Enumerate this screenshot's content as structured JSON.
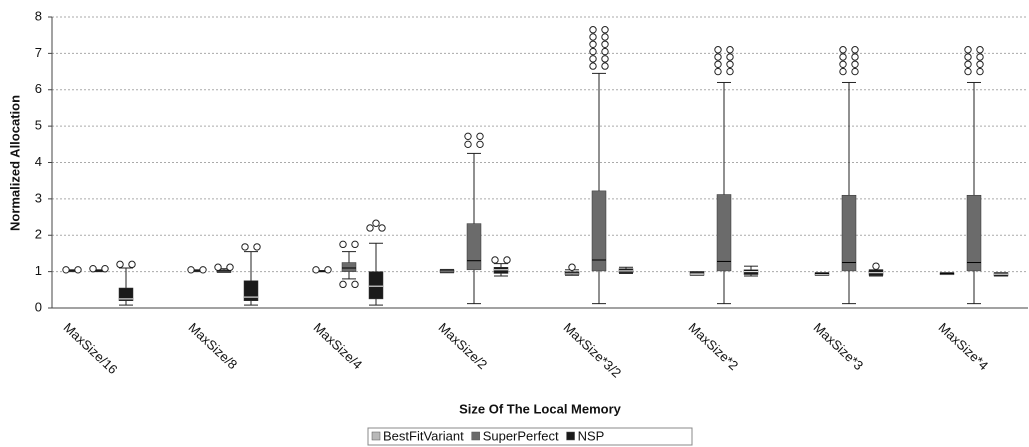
{
  "chart_data": {
    "type": "boxplot",
    "x_label": "Size Of The Local Memory",
    "y_label": "Normalized Allocation",
    "categories": [
      "MaxSize/16",
      "MaxSize/8",
      "MaxSize/4",
      "MaxSize/2",
      "MaxSize*3/2",
      "MaxSize*2",
      "MaxSize*3",
      "MaxSize*4"
    ],
    "ylim": [
      0,
      8
    ],
    "yticks": [
      0,
      1,
      2,
      3,
      4,
      5,
      6,
      7,
      8
    ],
    "grid": true,
    "legend": "bottom",
    "series": [
      {
        "name": "BestFitVariant",
        "color": "#b8b8b8",
        "boxes": [
          {
            "min": 1.0,
            "q1": 1.0,
            "median": 1.02,
            "q3": 1.04,
            "max": 1.05,
            "outliers": [
              1.05,
              1.05
            ]
          },
          {
            "min": 1.0,
            "q1": 1.0,
            "median": 1.02,
            "q3": 1.04,
            "max": 1.05,
            "outliers": [
              1.05,
              1.05
            ]
          },
          {
            "min": 1.0,
            "q1": 1.0,
            "median": 1.01,
            "q3": 1.02,
            "max": 1.03,
            "outliers": [
              1.05,
              1.05
            ]
          },
          {
            "min": 0.97,
            "q1": 0.98,
            "median": 1.02,
            "q3": 1.05,
            "max": 1.06,
            "outliers": []
          },
          {
            "min": 0.9,
            "q1": 0.92,
            "median": 0.97,
            "q3": 1.0,
            "max": 1.05,
            "outliers": [
              1.12
            ]
          },
          {
            "min": 0.9,
            "q1": 0.9,
            "median": 0.97,
            "q3": 1.0,
            "max": 1.0,
            "outliers": []
          },
          {
            "min": 0.9,
            "q1": 0.9,
            "median": 0.95,
            "q3": 0.97,
            "max": 0.97,
            "outliers": []
          },
          {
            "min": 0.92,
            "q1": 0.92,
            "median": 0.95,
            "q3": 0.97,
            "max": 0.97,
            "outliers": []
          }
        ]
      },
      {
        "name": "SuperPerfect",
        "color": "#6b6b6b",
        "boxes": [
          {
            "min": 1.0,
            "q1": 1.0,
            "median": 1.02,
            "q3": 1.04,
            "max": 1.05,
            "outliers": [
              1.08,
              1.08
            ]
          },
          {
            "min": 0.98,
            "q1": 0.98,
            "median": 1.02,
            "q3": 1.05,
            "max": 1.08,
            "outliers": [
              1.12,
              1.12
            ]
          },
          {
            "min": 0.8,
            "q1": 1.0,
            "median": 1.1,
            "q3": 1.25,
            "max": 1.55,
            "outliers": [
              1.75,
              1.75,
              0.65,
              0.65
            ]
          },
          {
            "min": 0.12,
            "q1": 1.05,
            "median": 1.3,
            "q3": 2.32,
            "max": 4.25,
            "outliers": [
              4.5,
              4.5,
              4.72,
              4.72
            ]
          },
          {
            "min": 0.12,
            "q1": 1.02,
            "median": 1.32,
            "q3": 3.22,
            "max": 6.45,
            "outliers": [
              6.65,
              6.65,
              6.85,
              6.85,
              7.05,
              7.05,
              7.25,
              7.25,
              7.45,
              7.45,
              7.65,
              7.65
            ]
          },
          {
            "min": 0.12,
            "q1": 1.02,
            "median": 1.28,
            "q3": 3.12,
            "max": 6.2,
            "outliers": [
              6.5,
              6.5,
              6.7,
              6.7,
              6.9,
              6.9,
              7.1,
              7.1
            ]
          },
          {
            "min": 0.12,
            "q1": 1.02,
            "median": 1.25,
            "q3": 3.1,
            "max": 6.2,
            "outliers": [
              6.5,
              6.5,
              6.7,
              6.7,
              6.9,
              6.9,
              7.1,
              7.1
            ]
          },
          {
            "min": 0.12,
            "q1": 1.02,
            "median": 1.25,
            "q3": 3.1,
            "max": 6.2,
            "outliers": [
              6.5,
              6.5,
              6.7,
              6.7,
              6.9,
              6.9,
              7.1,
              7.1
            ]
          }
        ]
      },
      {
        "name": "NSP",
        "color": "#1a1a1a",
        "boxes": [
          {
            "min": 0.08,
            "q1": 0.2,
            "median": 0.25,
            "q3": 0.55,
            "max": 1.1,
            "outliers": [
              1.2,
              1.2
            ]
          },
          {
            "min": 0.08,
            "q1": 0.2,
            "median": 0.3,
            "q3": 0.75,
            "max": 1.55,
            "outliers": [
              1.68,
              1.68
            ]
          },
          {
            "min": 0.08,
            "q1": 0.25,
            "median": 0.6,
            "q3": 1.0,
            "max": 1.78,
            "outliers": [
              2.2,
              2.2,
              2.33
            ]
          },
          {
            "min": 0.88,
            "q1": 0.95,
            "median": 1.05,
            "q3": 1.12,
            "max": 1.22,
            "outliers": [
              1.32,
              1.32
            ]
          },
          {
            "min": 0.95,
            "q1": 0.97,
            "median": 1.02,
            "q3": 1.08,
            "max": 1.12,
            "outliers": []
          },
          {
            "min": 0.88,
            "q1": 0.92,
            "median": 1.0,
            "q3": 1.05,
            "max": 1.15,
            "outliers": []
          },
          {
            "min": 0.88,
            "q1": 0.9,
            "median": 0.97,
            "q3": 1.05,
            "max": 1.05,
            "outliers": [
              1.15
            ]
          },
          {
            "min": 0.88,
            "q1": 0.88,
            "median": 0.93,
            "q3": 0.97,
            "max": 0.97,
            "outliers": []
          }
        ]
      }
    ]
  }
}
